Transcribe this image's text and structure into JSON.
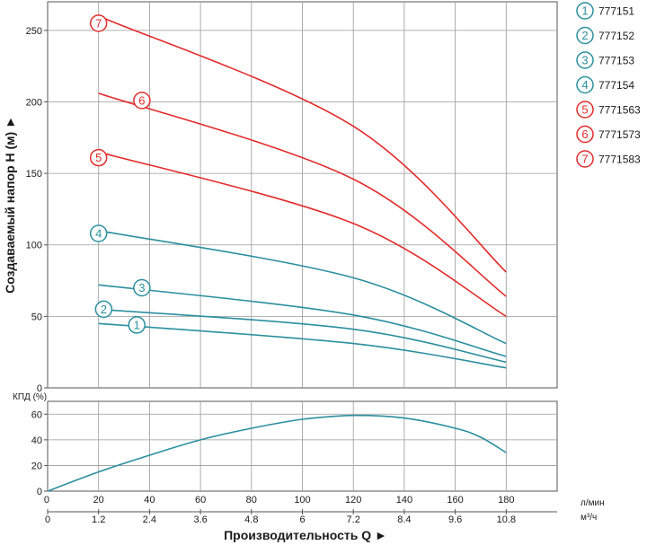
{
  "chart_data": {
    "type": "line",
    "title": "",
    "xlabel": "Производительность Q ►",
    "ylabel": "Создаваемый напор H (м) ►",
    "units": {
      "lpm": "л/мин",
      "m3h": "м³/ч"
    },
    "x_lpm_ticks": [
      20,
      40,
      60,
      80,
      100,
      120,
      140,
      160,
      180
    ],
    "x_m3h_ticks": [
      "0",
      "1.2",
      "2.4",
      "3.6",
      "4.8",
      "6",
      "7.2",
      "8.4",
      "9.6",
      "10.8"
    ],
    "xlim_lpm": [
      0,
      200
    ],
    "head": {
      "ylim": [
        0,
        270
      ],
      "yticks": [
        0,
        50,
        100,
        150,
        200,
        250
      ],
      "grid": true,
      "x": [
        20,
        120,
        180
      ],
      "series": [
        {
          "id": "1",
          "name": "777151",
          "color": "#2a8f9e",
          "values": [
            45,
            31,
            14
          ],
          "label_x": 35,
          "label_y": 44
        },
        {
          "id": "2",
          "name": "777152",
          "color": "#2a8f9e",
          "values": [
            55,
            41,
            18
          ],
          "label_x": 22,
          "label_y": 55
        },
        {
          "id": "3",
          "name": "777153",
          "color": "#2a8f9e",
          "values": [
            72,
            51,
            22
          ],
          "label_x": 37,
          "label_y": 70
        },
        {
          "id": "4",
          "name": "777154",
          "color": "#2a8f9e",
          "values": [
            110,
            77,
            31
          ],
          "label_x": 20,
          "label_y": 108
        },
        {
          "id": "5",
          "name": "7771563",
          "color": "#e32b2b",
          "values": [
            165,
            115,
            50
          ],
          "label_x": 20,
          "label_y": 161
        },
        {
          "id": "6",
          "name": "7771573",
          "color": "#e32b2b",
          "values": [
            206,
            146,
            64
          ],
          "label_x": 37,
          "label_y": 201
        },
        {
          "id": "7",
          "name": "7771583",
          "color": "#e32b2b",
          "values": [
            260,
            183,
            81
          ],
          "label_x": 20,
          "label_y": 255
        }
      ]
    },
    "efficiency": {
      "label": "КПД (%)",
      "ylim": [
        0,
        70
      ],
      "yticks": [
        0,
        20,
        40,
        60
      ],
      "color": "#2a8f9e",
      "x": [
        0,
        20,
        40,
        60,
        80,
        100,
        120,
        140,
        160,
        170,
        180
      ],
      "values": [
        0,
        15,
        28,
        40,
        49,
        56,
        59,
        57,
        49,
        42,
        30
      ]
    },
    "legend_position": "top-right"
  }
}
